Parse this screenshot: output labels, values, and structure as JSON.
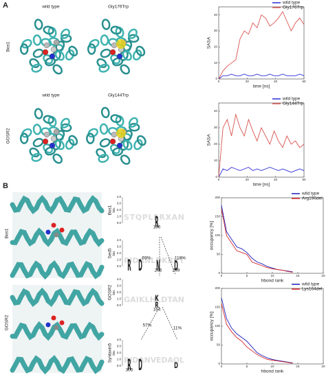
{
  "panel_a": {
    "label": "A",
    "rows": [
      {
        "name": "Bos1",
        "columns": [
          "wild type",
          "Gly176Trp"
        ]
      },
      {
        "name": "GOSR2",
        "columns": [
          "wild type",
          "Gly144Trp"
        ]
      }
    ]
  },
  "panel_b": {
    "label": "B",
    "rows": [
      "Bos1",
      "GOSR2"
    ],
    "logo_axis": "bits",
    "logo_ticks": [
      "0.0",
      "1.0",
      "2.0",
      "3.0",
      "4.0"
    ],
    "logos": [
      {
        "name": "Bos1",
        "background": "STQPLFRXAN",
        "main": [
          "R"
        ],
        "positions": [
          "196"
        ]
      },
      {
        "name": "Sed5",
        "background": "RIDANLDKRVT",
        "main": [
          "R",
          "D",
          "N",
          "D"
        ],
        "positions": [
          "296",
          "299"
        ]
      },
      {
        "name": "GOSR2",
        "background": "GAIKLHLDTAN",
        "main": [
          "K",
          "R"
        ],
        "positions": [
          "164"
        ]
      },
      {
        "name": "Syntaxin5",
        "background": "RIDANVEDAQL",
        "main": [
          "R",
          "D",
          "D"
        ],
        "positions": [
          "305"
        ]
      }
    ],
    "percentages": [
      "69%",
      "118%",
      "57%",
      "11%"
    ]
  },
  "chart_data": [
    {
      "type": "line",
      "ylabel": "SASA",
      "xlabel": "time [ns]",
      "x": [
        0,
        3,
        6,
        9,
        12,
        15,
        18,
        21,
        24,
        27,
        30,
        33,
        36,
        39,
        42,
        45,
        48,
        51,
        54,
        57,
        60
      ],
      "xlim": [
        0,
        60
      ],
      "xticks": [
        0,
        20,
        40,
        60
      ],
      "ylim": [
        0,
        45
      ],
      "yticks": [
        0,
        10,
        20,
        30,
        40
      ],
      "legend": "top-right",
      "series": [
        {
          "name": "wild type",
          "color": "#2b2bd6",
          "values": [
            0,
            2,
            2,
            3,
            2,
            2,
            3,
            2,
            2,
            3,
            2,
            2,
            3,
            2,
            2,
            3,
            2,
            2,
            2,
            3,
            2
          ]
        },
        {
          "name": "Gly176Trp",
          "color": "#d9534f",
          "values": [
            0,
            5,
            8,
            10,
            12,
            25,
            30,
            28,
            35,
            32,
            40,
            38,
            33,
            35,
            38,
            42,
            36,
            30,
            35,
            38,
            34
          ]
        }
      ]
    },
    {
      "type": "line",
      "ylabel": "SASA",
      "xlabel": "time [ns]",
      "x": [
        0,
        3,
        6,
        9,
        12,
        15,
        18,
        21,
        24,
        27,
        30,
        33,
        36,
        39,
        42,
        45,
        48,
        51,
        54,
        57,
        60
      ],
      "xlim": [
        0,
        60
      ],
      "xticks": [
        0,
        20,
        40,
        60
      ],
      "ylim": [
        0,
        45
      ],
      "yticks": [
        0,
        10,
        20,
        30,
        40
      ],
      "legend": "top-right",
      "series": [
        {
          "name": "wild type",
          "color": "#2b2bd6",
          "values": [
            0,
            5,
            4,
            6,
            5,
            4,
            5,
            6,
            4,
            5,
            4,
            5,
            6,
            5,
            4,
            5,
            4,
            3,
            4,
            5,
            4
          ]
        },
        {
          "name": "Gly144Trp",
          "color": "#d9534f",
          "values": [
            0,
            30,
            35,
            25,
            38,
            30,
            25,
            35,
            28,
            22,
            30,
            25,
            20,
            28,
            22,
            18,
            25,
            20,
            22,
            18,
            20
          ]
        }
      ]
    },
    {
      "type": "line",
      "ylabel": "occupancy [%]",
      "xlabel": "hbond rank",
      "x": [
        0,
        1,
        2,
        3,
        4,
        5,
        6,
        7,
        8,
        9,
        10,
        11,
        12,
        13,
        14
      ],
      "xlim": [
        0,
        20
      ],
      "xticks": [
        0,
        5,
        10,
        15,
        20
      ],
      "ylim": [
        0,
        200
      ],
      "yticks": [
        0,
        50,
        100,
        150,
        200
      ],
      "legend": "top-right",
      "series": [
        {
          "name": "wild type",
          "color": "#1a1ab8",
          "values": [
            180,
            110,
            90,
            70,
            65,
            55,
            40,
            30,
            25,
            18,
            14,
            10,
            8,
            6,
            4
          ]
        },
        {
          "name": "Arg196del",
          "color": "#d62728",
          "values": [
            170,
            100,
            80,
            60,
            55,
            50,
            30,
            25,
            20,
            15,
            12,
            10,
            8,
            5,
            3
          ]
        }
      ]
    },
    {
      "type": "line",
      "ylabel": "occupancy [%]",
      "xlabel": "hbond rank",
      "x": [
        0,
        1,
        2,
        3,
        4,
        5,
        6,
        7,
        8,
        9,
        10,
        11,
        12,
        13,
        14
      ],
      "xlim": [
        0,
        20
      ],
      "xticks": [
        0,
        5,
        10,
        15,
        20
      ],
      "ylim": [
        0,
        200
      ],
      "yticks": [
        0,
        50,
        100,
        150,
        200
      ],
      "legend": "top-right",
      "series": [
        {
          "name": "wild type",
          "color": "#1a1ab8",
          "values": [
            175,
            120,
            95,
            80,
            70,
            60,
            45,
            30,
            22,
            16,
            12,
            9,
            7,
            5,
            3
          ]
        },
        {
          "name": "Lys164del",
          "color": "#d62728",
          "values": [
            160,
            105,
            85,
            70,
            60,
            45,
            35,
            25,
            18,
            12,
            10,
            8,
            6,
            4,
            2
          ]
        }
      ]
    }
  ]
}
